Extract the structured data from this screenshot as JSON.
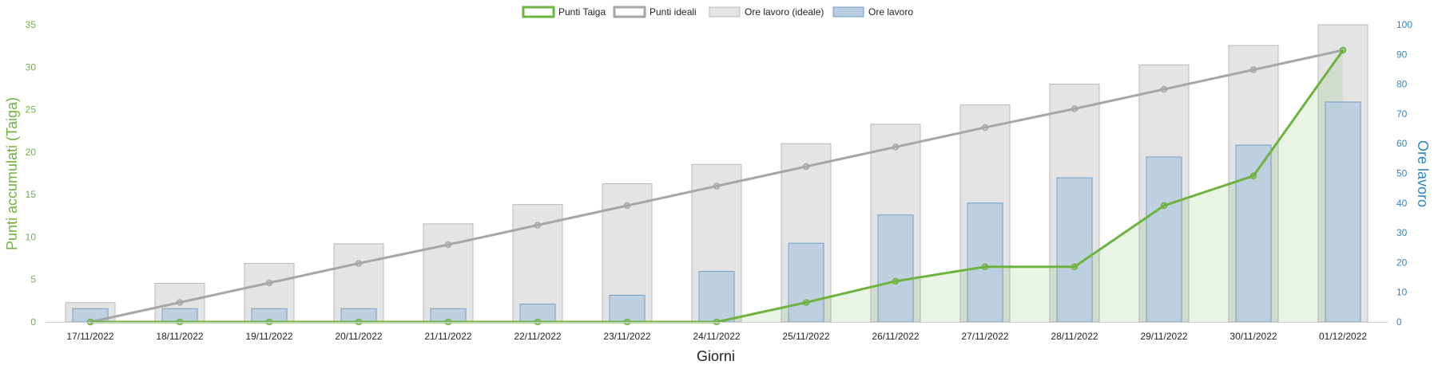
{
  "chart_data": {
    "type": "bar",
    "categories": [
      "17/11/2022",
      "18/11/2022",
      "19/11/2022",
      "20/11/2022",
      "21/11/2022",
      "22/11/2022",
      "23/11/2022",
      "24/11/2022",
      "25/11/2022",
      "26/11/2022",
      "27/11/2022",
      "28/11/2022",
      "29/11/2022",
      "30/11/2022",
      "01/12/2022"
    ],
    "xlabel": "Giorni",
    "ylabel_left": "Punti accumulati (Taiga)",
    "ylabel_right": "Ore lavoro",
    "ylim_left": [
      0,
      35
    ],
    "ylim_right": [
      0,
      100
    ],
    "yticks_left": [
      "0",
      "5",
      "10",
      "15",
      "20",
      "25",
      "30",
      "35"
    ],
    "yticks_right": [
      "0",
      "10",
      "20",
      "30",
      "40",
      "50",
      "60",
      "70",
      "80",
      "90",
      "100"
    ],
    "legend_position": "top-center",
    "series": [
      {
        "name": "Punti Taiga",
        "type": "area-line",
        "axis": "left",
        "color": "#6db33f",
        "values": [
          0,
          0,
          0,
          0,
          0,
          0,
          0,
          0,
          2.3,
          4.8,
          6.5,
          6.5,
          13.7,
          17.2,
          32
        ]
      },
      {
        "name": "Punti ideali",
        "type": "line",
        "axis": "left",
        "color": "#a6a6a6",
        "values": [
          0,
          2.3,
          4.6,
          6.9,
          9.1,
          11.4,
          13.7,
          16,
          18.3,
          20.6,
          22.9,
          25.1,
          27.4,
          29.7,
          32
        ]
      },
      {
        "name": "Ore lavoro (ideale)",
        "type": "bar",
        "axis": "right",
        "color": "#e4e4e4",
        "values": [
          6.5,
          13,
          19.7,
          26.3,
          33,
          39.5,
          46.5,
          53,
          60,
          66.5,
          73,
          80,
          86.5,
          93,
          100
        ]
      },
      {
        "name": "Ore lavoro",
        "type": "bar",
        "axis": "right",
        "color": "#b8cddf",
        "values": [
          4.5,
          4.5,
          4.5,
          4.5,
          4.5,
          6,
          9,
          17,
          26.5,
          36,
          40,
          48.5,
          55.5,
          59.5,
          74
        ]
      }
    ]
  }
}
